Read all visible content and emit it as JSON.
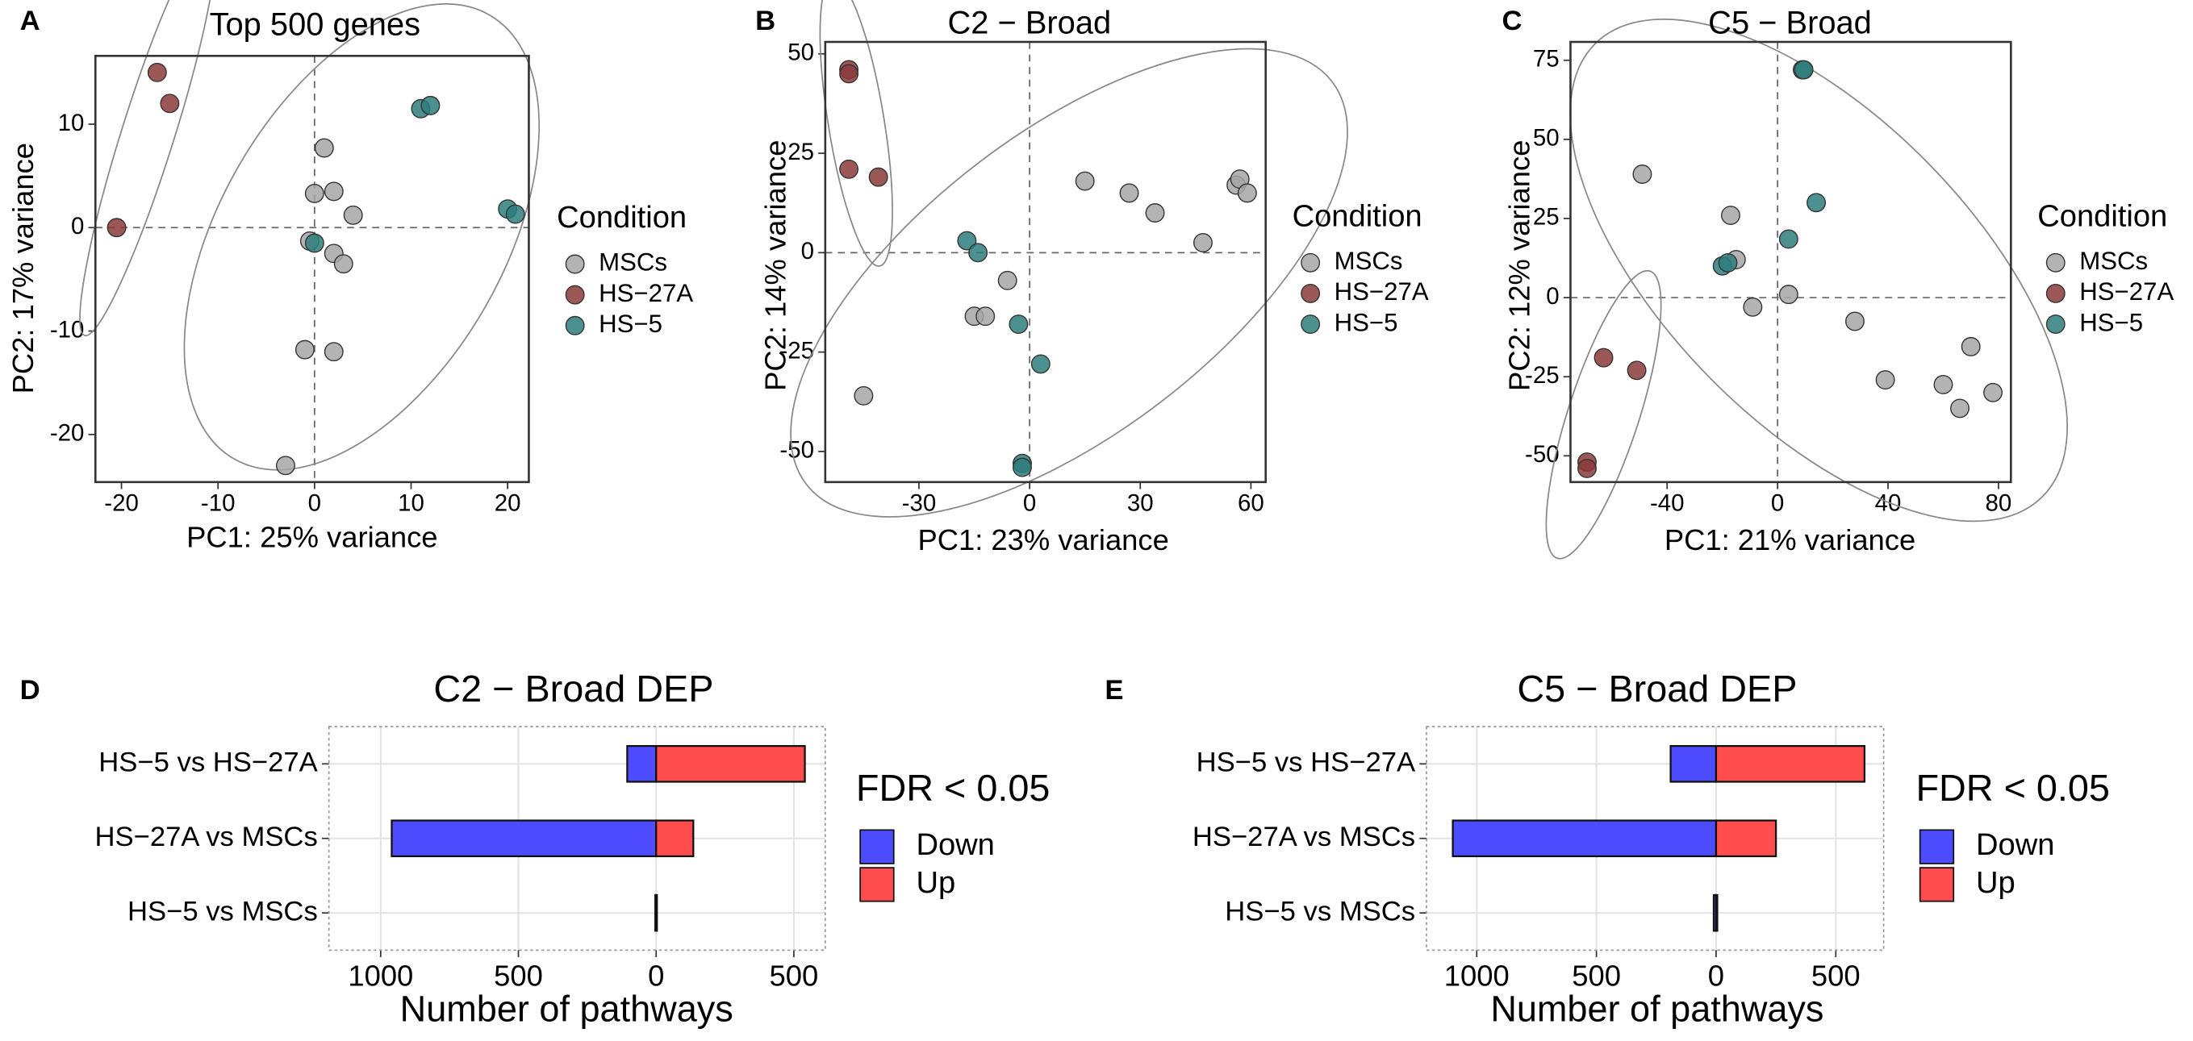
{
  "chart_data": [
    {
      "panel": "A",
      "type": "scatter",
      "title": "Top 500 genes",
      "xlabel": "PC1: 25% variance",
      "ylabel": "PC2: 17% variance",
      "xlim": [
        -22.7,
        22.2
      ],
      "ylim": [
        -24.6,
        16.6
      ],
      "xticks": [
        -20,
        -10,
        0,
        10,
        20
      ],
      "yticks": [
        -20,
        -10,
        0,
        10
      ],
      "legend_title": "Condition",
      "series": [
        {
          "name": "MSCs",
          "color": "#a6a6a6",
          "x": [
            1,
            2,
            0,
            4,
            2,
            3,
            -0.5,
            -1,
            2,
            -3
          ],
          "y": [
            7.7,
            3.5,
            3.3,
            1.2,
            -2.5,
            -3.5,
            -1.3,
            -11.8,
            -12,
            -23
          ]
        },
        {
          "name": "HS−27A",
          "color": "#8b3a3a",
          "x": [
            -16.3,
            -15,
            -20.5
          ],
          "y": [
            15,
            12,
            0
          ]
        },
        {
          "name": "HS−5",
          "color": "#2e7d7d",
          "x": [
            11,
            12,
            20,
            20.8,
            0
          ],
          "y": [
            11.5,
            11.8,
            1.8,
            1.3,
            -1.5
          ]
        }
      ]
    },
    {
      "panel": "B",
      "type": "scatter",
      "title": "C2 − Broad",
      "xlabel": "PC1: 23% variance",
      "ylabel": "PC2: 14% variance",
      "xlim": [
        -55.4,
        64
      ],
      "ylim": [
        -57.7,
        53
      ],
      "xticks": [
        -30,
        0,
        30,
        60
      ],
      "yticks": [
        -50,
        -25,
        0,
        25,
        50
      ],
      "legend_title": "Condition",
      "series": [
        {
          "name": "MSCs",
          "color": "#a6a6a6",
          "x": [
            -45,
            -15,
            -12,
            -6,
            15,
            27,
            34,
            47,
            56,
            57,
            59
          ],
          "y": [
            -36,
            -16,
            -16,
            -7,
            18,
            15,
            10,
            2.5,
            17,
            18.5,
            15
          ]
        },
        {
          "name": "HS−27A",
          "color": "#8b3a3a",
          "x": [
            -49,
            -49,
            -49,
            -41
          ],
          "y": [
            46,
            45,
            21,
            19
          ]
        },
        {
          "name": "HS−5",
          "color": "#2e7d7d",
          "x": [
            -17,
            -14,
            -3,
            3,
            -2,
            -2
          ],
          "y": [
            3,
            0,
            -18,
            -28,
            -53,
            -54
          ]
        }
      ]
    },
    {
      "panel": "C",
      "type": "scatter",
      "title": "C5 − Broad",
      "xlabel": "PC1: 21% variance",
      "ylabel": "PC2: 12% variance",
      "xlim": [
        -75,
        84.5
      ],
      "ylim": [
        -58.3,
        80.8
      ],
      "xticks": [
        -40,
        0,
        40,
        80
      ],
      "yticks": [
        -50,
        -25,
        0,
        25,
        50,
        75
      ],
      "legend_title": "Condition",
      "series": [
        {
          "name": "MSCs",
          "color": "#a6a6a6",
          "x": [
            -49,
            -17,
            -15,
            -9,
            4,
            28,
            39,
            60,
            66,
            70,
            78
          ],
          "y": [
            39,
            26,
            12,
            -3,
            1,
            -7.5,
            -26,
            -27.5,
            -35,
            -15.5,
            -30
          ]
        },
        {
          "name": "HS−27A",
          "color": "#8b3a3a",
          "x": [
            -63,
            -51,
            -69,
            -69
          ],
          "y": [
            -19,
            -23,
            -52,
            -54
          ]
        },
        {
          "name": "HS−5",
          "color": "#2e7d7d",
          "x": [
            -20,
            -18,
            4,
            9,
            9.5,
            14
          ],
          "y": [
            10,
            11,
            18.5,
            72,
            72,
            30
          ]
        }
      ]
    },
    {
      "panel": "D",
      "type": "bar",
      "orientation": "horizontal",
      "title": "C2 − Broad DEP",
      "xlabel": "Number of pathways",
      "categories": [
        "HS−5 vs HS−27A",
        "HS−27A vs MSCs",
        "HS−5 vs MSCs"
      ],
      "xlim": [
        -1188,
        614
      ],
      "xticks": [
        {
          "value": -1000,
          "label": "1000"
        },
        {
          "value": -500,
          "label": "500"
        },
        0,
        500
      ],
      "grid": true,
      "legend_title": "FDR < 0.05",
      "series": [
        {
          "name": "Down",
          "color": "#4d4dff",
          "values": [
            -105,
            -960,
            -3
          ]
        },
        {
          "name": "Up",
          "color": "#ff4d4d",
          "values": [
            540,
            135,
            3
          ]
        }
      ]
    },
    {
      "panel": "E",
      "type": "bar",
      "orientation": "horizontal",
      "title": "C5 − Broad DEP",
      "xlabel": "Number of pathways",
      "categories": [
        "HS−5 vs HS−27A",
        "HS−27A vs MSCs",
        "HS−5 vs MSCs"
      ],
      "xlim": [
        -1210,
        700
      ],
      "xticks": [
        {
          "value": -1000,
          "label": "1000"
        },
        {
          "value": -500,
          "label": "500"
        },
        0,
        500
      ],
      "grid": true,
      "legend_title": "FDR < 0.05",
      "series": [
        {
          "name": "Down",
          "color": "#4d4dff",
          "values": [
            -190,
            -1100,
            -10
          ]
        },
        {
          "name": "Up",
          "color": "#ff4d4d",
          "values": [
            620,
            250,
            5
          ]
        }
      ]
    }
  ]
}
